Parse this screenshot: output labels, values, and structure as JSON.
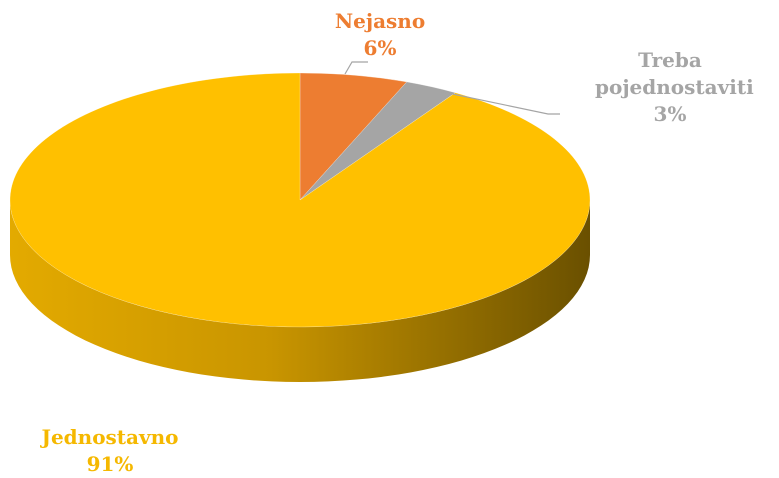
{
  "chart_data": {
    "type": "pie",
    "categories": [
      "Nejasno",
      "Treba pojednostaviti",
      "Jednostavno"
    ],
    "values": [
      6,
      3,
      91
    ],
    "value_labels": [
      "6%",
      "3%",
      "91%"
    ],
    "colors": [
      "#ED7D31",
      "#A5A5A5",
      "#FFC000"
    ],
    "start_angle": 0,
    "direction": "clockwise",
    "three_d": true
  }
}
